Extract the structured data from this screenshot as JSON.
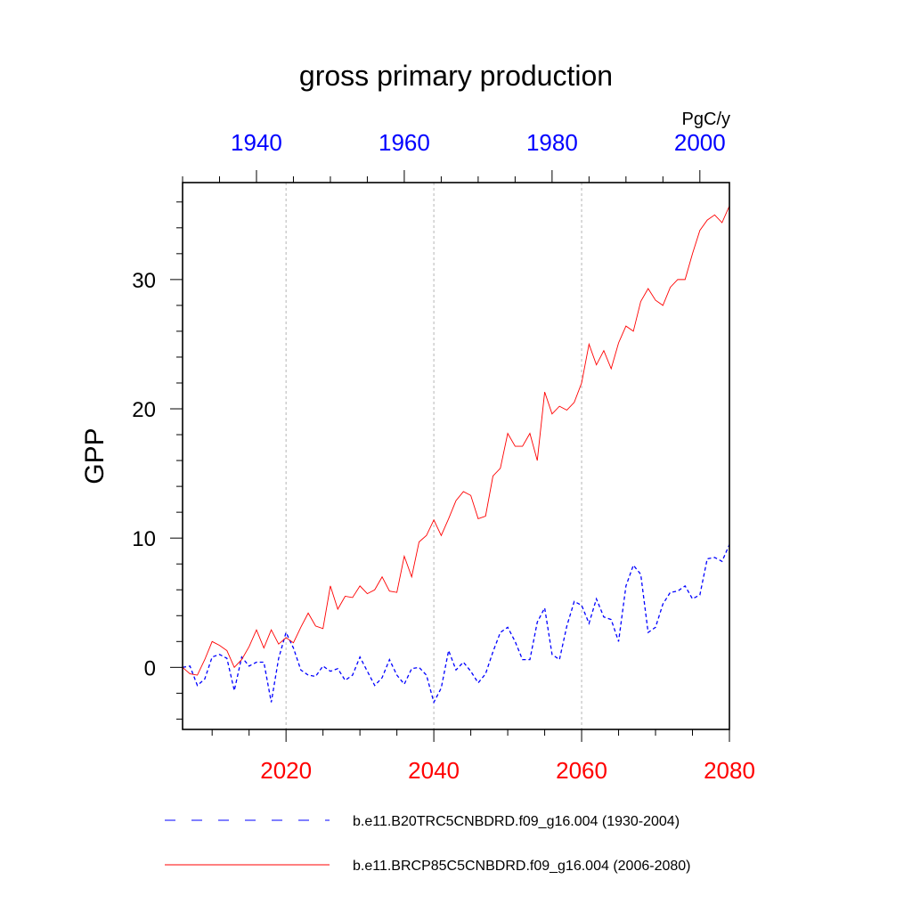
{
  "chart_data": {
    "type": "line",
    "title": "gross primary production",
    "ylabel": "GPP",
    "units": "PgC/y",
    "ylim": [
      -4.8,
      37.5
    ],
    "yticks": [
      0,
      10,
      20,
      30
    ],
    "grid": "vertical dashed at major bottom-axis ticks",
    "top_axis": {
      "range": [
        1930,
        2004
      ],
      "ticks": [
        1940,
        1960,
        1980,
        2000
      ],
      "tick_labels": [
        "1940",
        "1960",
        "1980",
        "2000"
      ],
      "color": "#0000ff"
    },
    "bottom_axis": {
      "range": [
        2006,
        2080
      ],
      "ticks": [
        2020,
        2040,
        2060,
        2080
      ],
      "tick_labels": [
        "2020",
        "2040",
        "2060",
        "2080"
      ],
      "color": "#ff0000"
    },
    "legend_position": "bottom",
    "series": [
      {
        "name": "b.e11.B20TRC5CNBDRD.f09_g16.004 (1930-2004)",
        "axis": "top",
        "color": "#0000ff",
        "style": "dashed",
        "x": [
          1930,
          1931,
          1932,
          1933,
          1934,
          1935,
          1936,
          1937,
          1938,
          1939,
          1940,
          1941,
          1942,
          1943,
          1944,
          1945,
          1946,
          1947,
          1948,
          1949,
          1950,
          1951,
          1952,
          1953,
          1954,
          1955,
          1956,
          1957,
          1958,
          1959,
          1960,
          1961,
          1962,
          1963,
          1964,
          1965,
          1966,
          1967,
          1968,
          1969,
          1970,
          1971,
          1972,
          1973,
          1974,
          1975,
          1976,
          1977,
          1978,
          1979,
          1980,
          1981,
          1982,
          1983,
          1984,
          1985,
          1986,
          1987,
          1988,
          1989,
          1990,
          1991,
          1992,
          1993,
          1994,
          1995,
          1996,
          1997,
          1998,
          1999,
          2000,
          2001,
          2002,
          2003,
          2004
        ],
        "values": [
          0.0,
          0.1,
          -1.4,
          -0.9,
          0.8,
          1.0,
          0.7,
          -1.8,
          0.8,
          0.1,
          0.4,
          0.4,
          -2.7,
          0.7,
          2.7,
          1.5,
          -0.2,
          -0.6,
          -0.7,
          0.1,
          -0.3,
          -0.1,
          -1.0,
          -0.6,
          0.8,
          -0.3,
          -1.4,
          -0.8,
          0.6,
          -0.6,
          -1.3,
          -0.1,
          0.0,
          -0.6,
          -2.7,
          -1.6,
          1.3,
          -0.2,
          0.4,
          -0.3,
          -1.2,
          -0.5,
          1.2,
          2.7,
          3.1,
          2.0,
          0.6,
          0.6,
          3.5,
          4.6,
          1.0,
          0.6,
          3.2,
          5.1,
          4.8,
          3.4,
          5.3,
          3.9,
          3.7,
          2.0,
          6.3,
          7.9,
          7.2,
          2.7,
          3.1,
          4.9,
          5.8,
          5.9,
          6.3,
          5.3,
          5.6,
          8.4,
          8.5,
          8.2,
          9.5
        ]
      },
      {
        "name": "b.e11.BRCP85C5CNBDRD.f09_g16.004 (2006-2080)",
        "axis": "bottom",
        "color": "#ff0000",
        "style": "solid",
        "x": [
          2006,
          2007,
          2008,
          2009,
          2010,
          2011,
          2012,
          2013,
          2014,
          2015,
          2016,
          2017,
          2018,
          2019,
          2020,
          2021,
          2022,
          2023,
          2024,
          2025,
          2026,
          2027,
          2028,
          2029,
          2030,
          2031,
          2032,
          2033,
          2034,
          2035,
          2036,
          2037,
          2038,
          2039,
          2040,
          2041,
          2042,
          2043,
          2044,
          2045,
          2046,
          2047,
          2048,
          2049,
          2050,
          2051,
          2052,
          2053,
          2054,
          2055,
          2056,
          2057,
          2058,
          2059,
          2060,
          2061,
          2062,
          2063,
          2064,
          2065,
          2066,
          2067,
          2068,
          2069,
          2070,
          2071,
          2072,
          2073,
          2074,
          2075,
          2076,
          2077,
          2078,
          2079,
          2080
        ],
        "values": [
          0.0,
          -0.5,
          -0.6,
          0.6,
          2.0,
          1.7,
          1.3,
          0.0,
          0.6,
          1.6,
          2.9,
          1.5,
          2.9,
          1.8,
          2.3,
          1.9,
          3.1,
          4.2,
          3.2,
          3.0,
          6.3,
          4.5,
          5.5,
          5.4,
          6.3,
          5.7,
          6.0,
          7.0,
          5.9,
          5.8,
          8.6,
          7.0,
          9.7,
          10.2,
          11.4,
          10.2,
          11.5,
          12.9,
          13.6,
          13.3,
          11.5,
          11.7,
          14.8,
          15.4,
          18.1,
          17.1,
          17.1,
          18.1,
          16.0,
          21.3,
          19.6,
          20.2,
          19.9,
          20.5,
          22.0,
          25.0,
          23.4,
          24.5,
          23.1,
          25.1,
          26.4,
          26.0,
          28.3,
          29.3,
          28.4,
          28.0,
          29.4,
          30.0,
          30.0,
          32.0,
          33.8,
          34.6,
          35.0,
          34.4,
          35.7
        ]
      }
    ]
  }
}
